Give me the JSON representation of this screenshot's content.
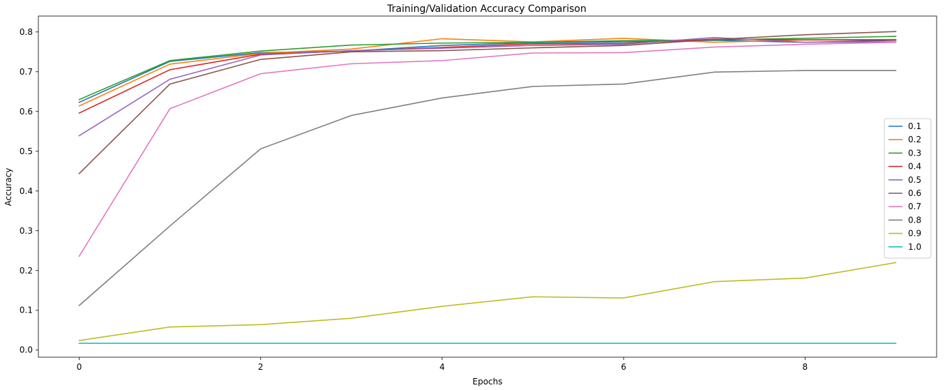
{
  "chart_data": {
    "type": "line",
    "title": "Training/Validation Accuracy Comparison",
    "xlabel": "Epochs",
    "ylabel": "Accuracy",
    "xlim": [
      -0.45,
      9.45
    ],
    "ylim": [
      -0.018,
      0.84
    ],
    "xticks": [
      0,
      2,
      4,
      6,
      8
    ],
    "yticks": [
      0.0,
      0.1,
      0.2,
      0.3,
      0.4,
      0.5,
      0.6,
      0.7,
      0.8
    ],
    "ytick_labels": [
      "0.0",
      "0.1",
      "0.2",
      "0.3",
      "0.4",
      "0.5",
      "0.6",
      "0.7",
      "0.8"
    ],
    "grid": false,
    "legend_position": "center-right",
    "x": [
      0,
      1,
      2,
      3,
      4,
      5,
      6,
      7,
      8,
      9
    ],
    "series": [
      {
        "name": "0.1",
        "color": "#1f77b4",
        "values": [
          0.623,
          0.726,
          0.748,
          0.752,
          0.766,
          0.773,
          0.775,
          0.779,
          0.774,
          0.779
        ]
      },
      {
        "name": "0.2",
        "color": "#ff7f0e",
        "values": [
          0.614,
          0.719,
          0.746,
          0.757,
          0.783,
          0.775,
          0.784,
          0.774,
          0.78,
          0.781
        ]
      },
      {
        "name": "0.3",
        "color": "#2ca02c",
        "values": [
          0.63,
          0.728,
          0.752,
          0.767,
          0.772,
          0.774,
          0.778,
          0.78,
          0.784,
          0.789
        ]
      },
      {
        "name": "0.4",
        "color": "#d62728",
        "values": [
          0.596,
          0.705,
          0.744,
          0.752,
          0.761,
          0.77,
          0.771,
          0.782,
          0.78,
          0.78
        ]
      },
      {
        "name": "0.5",
        "color": "#9467bd",
        "values": [
          0.539,
          0.681,
          0.742,
          0.753,
          0.759,
          0.766,
          0.769,
          0.786,
          0.774,
          0.775
        ]
      },
      {
        "name": "0.6",
        "color": "#8c564b",
        "values": [
          0.444,
          0.669,
          0.731,
          0.75,
          0.753,
          0.76,
          0.766,
          0.781,
          0.793,
          0.801
        ]
      },
      {
        "name": "0.7",
        "color": "#e377c2",
        "values": [
          0.236,
          0.607,
          0.695,
          0.72,
          0.728,
          0.747,
          0.748,
          0.762,
          0.769,
          0.774
        ]
      },
      {
        "name": "0.8",
        "color": "#7f7f7f",
        "values": [
          0.112,
          0.312,
          0.506,
          0.59,
          0.634,
          0.663,
          0.669,
          0.699,
          0.703,
          0.703
        ]
      },
      {
        "name": "0.9",
        "color": "#bcbd22",
        "values": [
          0.024,
          0.058,
          0.064,
          0.08,
          0.11,
          0.134,
          0.131,
          0.172,
          0.181,
          0.22
        ]
      },
      {
        "name": "1.0",
        "color": "#17becf",
        "values": [
          0.017,
          0.017,
          0.017,
          0.017,
          0.017,
          0.017,
          0.017,
          0.017,
          0.017,
          0.017
        ]
      }
    ]
  }
}
